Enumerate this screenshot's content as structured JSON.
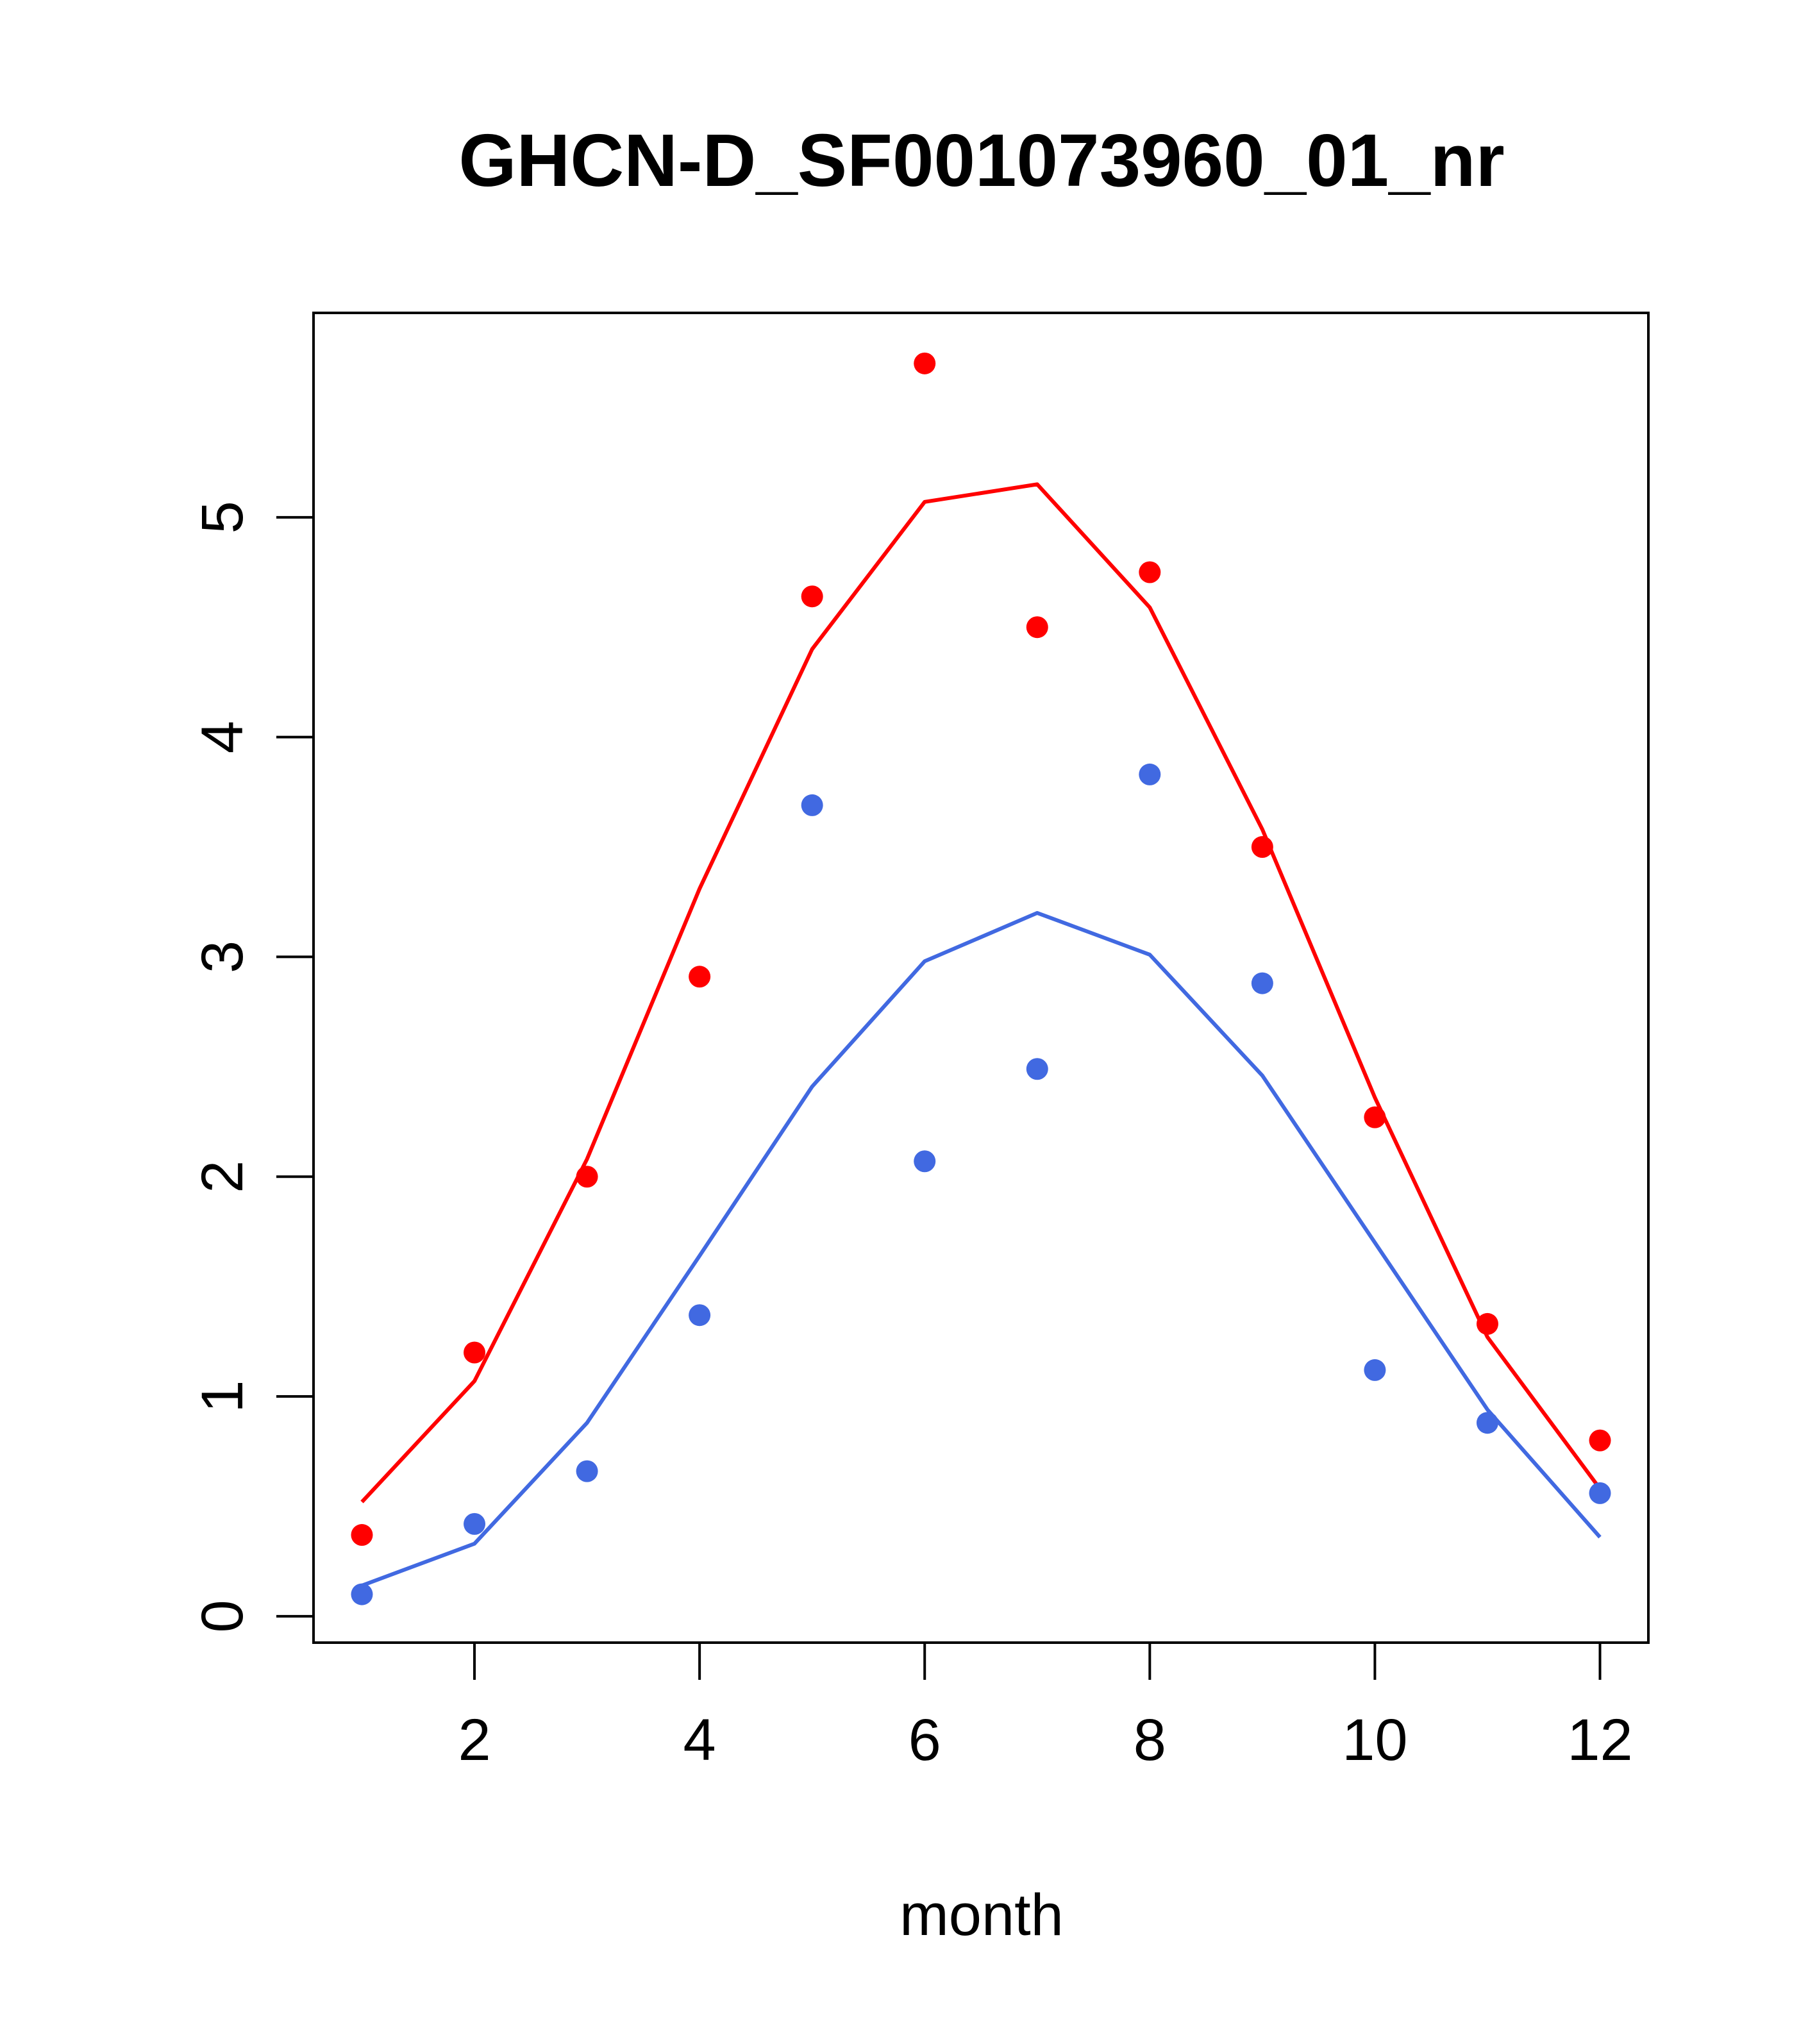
{
  "chart_data": {
    "type": "line",
    "title": "GHCN-D_SF001073960_01_nr",
    "xlabel": "month",
    "ylabel": "",
    "xlim": [
      0.57,
      12.43
    ],
    "ylim": [
      -0.12,
      5.93
    ],
    "x_ticks": [
      2,
      4,
      6,
      8,
      10,
      12
    ],
    "y_ticks": [
      0,
      1,
      2,
      3,
      4,
      5
    ],
    "grid": false,
    "legend": "none",
    "x": [
      1,
      2,
      3,
      4,
      5,
      6,
      7,
      8,
      9,
      10,
      11,
      12
    ],
    "series": [
      {
        "color": "#ff0000",
        "points": [
          0.37,
          1.2,
          2.0,
          2.91,
          4.64,
          5.7,
          4.5,
          4.75,
          3.5,
          2.27,
          1.33,
          0.8
        ],
        "line": [
          0.52,
          1.07,
          2.08,
          3.31,
          4.4,
          5.07,
          5.15,
          4.59,
          3.58,
          2.36,
          1.27,
          0.58
        ]
      },
      {
        "color": "#4169e1",
        "points": [
          0.1,
          0.42,
          0.66,
          1.37,
          3.69,
          2.07,
          2.49,
          3.83,
          2.88,
          1.12,
          0.88,
          0.56
        ],
        "line": [
          0.14,
          0.33,
          0.88,
          1.64,
          2.41,
          2.98,
          3.2,
          3.01,
          2.46,
          1.7,
          0.94,
          0.36
        ]
      }
    ]
  }
}
